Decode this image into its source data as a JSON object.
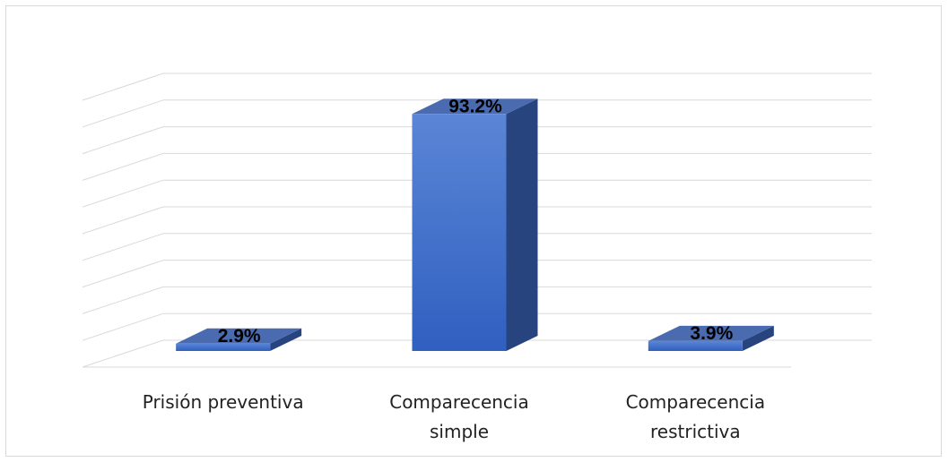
{
  "chart_data": {
    "type": "bar",
    "categories": [
      "Prisión preventiva",
      "Comparecencia simple",
      "Comparecencia restrictiva"
    ],
    "category_lines": [
      [
        "Prisión preventiva"
      ],
      [
        "Comparecencia",
        "simple"
      ],
      [
        "Comparecencia",
        "restrictiva"
      ]
    ],
    "values": [
      2.9,
      93.2,
      3.9
    ],
    "value_labels": [
      "2.9%",
      "93.2%",
      "3.9%"
    ],
    "ylim": [
      0,
      100
    ],
    "grid": true,
    "bar_style": "3d",
    "legend": "none"
  },
  "colors": {
    "bar_front_top": "#5b86d6",
    "bar_front_bottom": "#2f5fc0",
    "bar_side": "#27447f",
    "bar_top": "#4a6bb0",
    "grid": "#d9d9d9",
    "border": "#d9d9d9"
  }
}
